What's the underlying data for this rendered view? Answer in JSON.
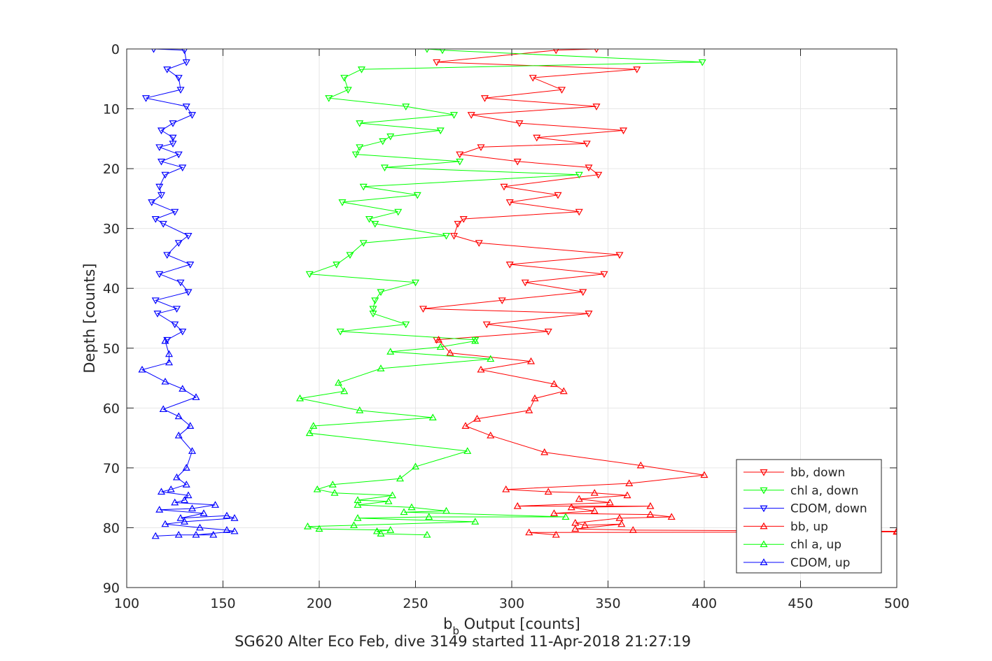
{
  "chart_data": {
    "type": "line",
    "title": "",
    "xlabel_main": "b",
    "xlabel_sub": "b",
    "xlabel_rest": " Output [counts]",
    "ylabel": "Depth [counts]",
    "caption": "SG620 Alter Eco Feb, dive 3149 started 11-Apr-2018 21:27:19",
    "xlim": [
      100,
      500
    ],
    "ylim": [
      0,
      90
    ],
    "y_reversed": true,
    "grid": true,
    "legend_position": "bottom-right",
    "x_ticks": [
      100,
      150,
      200,
      250,
      300,
      350,
      400,
      450,
      500
    ],
    "y_ticks": [
      0,
      10,
      20,
      30,
      40,
      50,
      60,
      70,
      80,
      90
    ],
    "series": [
      {
        "name": "bb, down",
        "color": "#ff0000",
        "marker": "triangle-down",
        "points": [
          [
            344,
            0
          ],
          [
            323,
            0.2
          ],
          [
            261,
            2.2
          ],
          [
            365,
            3.4
          ],
          [
            311,
            4.8
          ],
          [
            326,
            6.8
          ],
          [
            286,
            8.2
          ],
          [
            344,
            9.6
          ],
          [
            279,
            11
          ],
          [
            304,
            12.4
          ],
          [
            358,
            13.6
          ],
          [
            313,
            14.8
          ],
          [
            339,
            15.8
          ],
          [
            284,
            16.4
          ],
          [
            273,
            17.6
          ],
          [
            303,
            18.8
          ],
          [
            340,
            19.8
          ],
          [
            345,
            21
          ],
          [
            296,
            23
          ],
          [
            324,
            24.4
          ],
          [
            299,
            25.6
          ],
          [
            335,
            27.2
          ],
          [
            275,
            28.4
          ],
          [
            272,
            29.2
          ],
          [
            270,
            31.2
          ],
          [
            283,
            32.4
          ],
          [
            356,
            34.4
          ],
          [
            299,
            36
          ],
          [
            348,
            37.6
          ],
          [
            307,
            39
          ],
          [
            337,
            40.6
          ],
          [
            295,
            42
          ],
          [
            254,
            43.4
          ],
          [
            340,
            44.2
          ],
          [
            287,
            46
          ],
          [
            319,
            47.2
          ],
          [
            261,
            48.6
          ]
        ]
      },
      {
        "name": "chl a, down",
        "color": "#00ff00",
        "marker": "triangle-down",
        "points": [
          [
            256,
            0
          ],
          [
            264,
            0.2
          ],
          [
            399,
            2.2
          ],
          [
            222,
            3.4
          ],
          [
            213,
            4.8
          ],
          [
            215,
            6.8
          ],
          [
            205,
            8.2
          ],
          [
            245,
            9.6
          ],
          [
            270,
            11
          ],
          [
            221,
            12.4
          ],
          [
            263,
            13.6
          ],
          [
            237,
            14.6
          ],
          [
            233,
            15.4
          ],
          [
            221,
            16.4
          ],
          [
            219,
            17.6
          ],
          [
            273,
            18.8
          ],
          [
            234,
            19.8
          ],
          [
            335,
            21
          ],
          [
            223,
            23
          ],
          [
            251,
            24.4
          ],
          [
            212,
            25.6
          ],
          [
            241,
            27.2
          ],
          [
            226,
            28.4
          ],
          [
            229,
            29.2
          ],
          [
            266,
            31.2
          ],
          [
            223,
            32.4
          ],
          [
            216,
            34.4
          ],
          [
            209,
            36
          ],
          [
            195,
            37.6
          ],
          [
            250,
            39
          ],
          [
            232,
            40.6
          ],
          [
            229,
            42
          ],
          [
            228,
            43.4
          ],
          [
            228,
            44.2
          ],
          [
            245,
            46
          ],
          [
            211,
            47.2
          ],
          [
            281,
            48.6
          ]
        ]
      },
      {
        "name": "CDOM, down",
        "color": "#0000ff",
        "marker": "triangle-down",
        "points": [
          [
            114,
            0
          ],
          [
            130,
            0.2
          ],
          [
            131,
            2.2
          ],
          [
            121,
            3.4
          ],
          [
            127,
            4.8
          ],
          [
            128,
            6.8
          ],
          [
            110,
            8.2
          ],
          [
            131,
            9.6
          ],
          [
            134,
            11
          ],
          [
            124,
            12.4
          ],
          [
            118,
            13.6
          ],
          [
            124,
            14.8
          ],
          [
            124,
            15.8
          ],
          [
            117,
            16.4
          ],
          [
            127,
            17.6
          ],
          [
            118,
            18.8
          ],
          [
            129,
            19.8
          ],
          [
            120,
            21
          ],
          [
            117,
            23
          ],
          [
            118,
            24.4
          ],
          [
            113,
            25.6
          ],
          [
            125,
            27.2
          ],
          [
            115,
            28.4
          ],
          [
            119,
            29.2
          ],
          [
            132,
            31.2
          ],
          [
            127,
            32.4
          ],
          [
            121,
            34.4
          ],
          [
            133,
            36
          ],
          [
            117,
            37.6
          ],
          [
            128,
            39
          ],
          [
            132,
            40.6
          ],
          [
            115,
            42
          ],
          [
            126,
            43.4
          ],
          [
            116,
            44.2
          ],
          [
            125,
            46
          ],
          [
            129,
            47.2
          ],
          [
            121,
            48.6
          ]
        ]
      },
      {
        "name": "bb, up",
        "color": "#ff0000",
        "marker": "triangle-up",
        "points": [
          [
            323,
            81.2
          ],
          [
            309,
            80.8
          ],
          [
            500,
            80.7
          ],
          [
            500,
            80.6
          ],
          [
            363,
            80.4
          ],
          [
            333,
            80.2
          ],
          [
            357,
            79.4
          ],
          [
            338,
            79.6
          ],
          [
            333,
            79.2
          ],
          [
            356,
            78.4
          ],
          [
            383,
            78.2
          ],
          [
            372,
            77.8
          ],
          [
            322,
            77.6
          ],
          [
            343,
            77.2
          ],
          [
            331,
            76.6
          ],
          [
            372,
            76.4
          ],
          [
            303,
            76.4
          ],
          [
            351,
            75.8
          ],
          [
            335,
            75.2
          ],
          [
            360,
            74.6
          ],
          [
            343,
            74.2
          ],
          [
            319,
            74
          ],
          [
            297,
            73.6
          ],
          [
            361,
            72.6
          ],
          [
            400,
            71.2
          ],
          [
            367,
            69.6
          ],
          [
            317,
            67.4
          ],
          [
            289,
            64.6
          ],
          [
            276,
            63
          ],
          [
            282,
            61.8
          ],
          [
            309,
            60.4
          ],
          [
            312,
            58.4
          ],
          [
            327,
            57.2
          ],
          [
            322,
            56
          ],
          [
            284,
            53.6
          ],
          [
            310,
            52.2
          ],
          [
            268,
            50.8
          ],
          [
            262,
            48.6
          ]
        ]
      },
      {
        "name": "chl a, up",
        "color": "#00ff00",
        "marker": "triangle-up",
        "points": [
          [
            256,
            81.2
          ],
          [
            232,
            81
          ],
          [
            230,
            80.6
          ],
          [
            237,
            80.4
          ],
          [
            200,
            80.2
          ],
          [
            194,
            79.8
          ],
          [
            218,
            79.6
          ],
          [
            281,
            79
          ],
          [
            220,
            78.4
          ],
          [
            257,
            78.2
          ],
          [
            328,
            78.2
          ],
          [
            244,
            77.4
          ],
          [
            266,
            77.2
          ],
          [
            248,
            76.6
          ],
          [
            220,
            76.2
          ],
          [
            236,
            75.6
          ],
          [
            220,
            75.4
          ],
          [
            238,
            74.6
          ],
          [
            208,
            74.2
          ],
          [
            199,
            73.6
          ],
          [
            207,
            72.8
          ],
          [
            242,
            71.8
          ],
          [
            250,
            69.8
          ],
          [
            277,
            67.2
          ],
          [
            195,
            64.2
          ],
          [
            197,
            63
          ],
          [
            259,
            61.6
          ],
          [
            221,
            60.4
          ],
          [
            190,
            58.4
          ],
          [
            213,
            57.2
          ],
          [
            210,
            55.8
          ],
          [
            232,
            53.4
          ],
          [
            289,
            51.8
          ],
          [
            237,
            50.6
          ],
          [
            263,
            49.8
          ],
          [
            281,
            48.8
          ]
        ]
      },
      {
        "name": "CDOM, up",
        "color": "#0000ff",
        "marker": "triangle-up",
        "points": [
          [
            115,
            81.4
          ],
          [
            127,
            81.2
          ],
          [
            145,
            81.2
          ],
          [
            136,
            81.2
          ],
          [
            156,
            80.6
          ],
          [
            152,
            80.4
          ],
          [
            138,
            80
          ],
          [
            120,
            79.4
          ],
          [
            130,
            79
          ],
          [
            156,
            78.4
          ],
          [
            152,
            78
          ],
          [
            128,
            78.4
          ],
          [
            140,
            77.6
          ],
          [
            117,
            77
          ],
          [
            134,
            76.8
          ],
          [
            146,
            76.2
          ],
          [
            125,
            75.8
          ],
          [
            130,
            75.4
          ],
          [
            132,
            74.6
          ],
          [
            118,
            74
          ],
          [
            123,
            73.6
          ],
          [
            131,
            72.8
          ],
          [
            126,
            71.6
          ],
          [
            131,
            70
          ],
          [
            134,
            67.2
          ],
          [
            127,
            64.6
          ],
          [
            133,
            63
          ],
          [
            127,
            61.4
          ],
          [
            119,
            60.2
          ],
          [
            136,
            58.2
          ],
          [
            129,
            56.8
          ],
          [
            120,
            55.6
          ],
          [
            108,
            53.6
          ],
          [
            122,
            52.4
          ],
          [
            122,
            51
          ],
          [
            120,
            48.8
          ]
        ]
      }
    ]
  }
}
